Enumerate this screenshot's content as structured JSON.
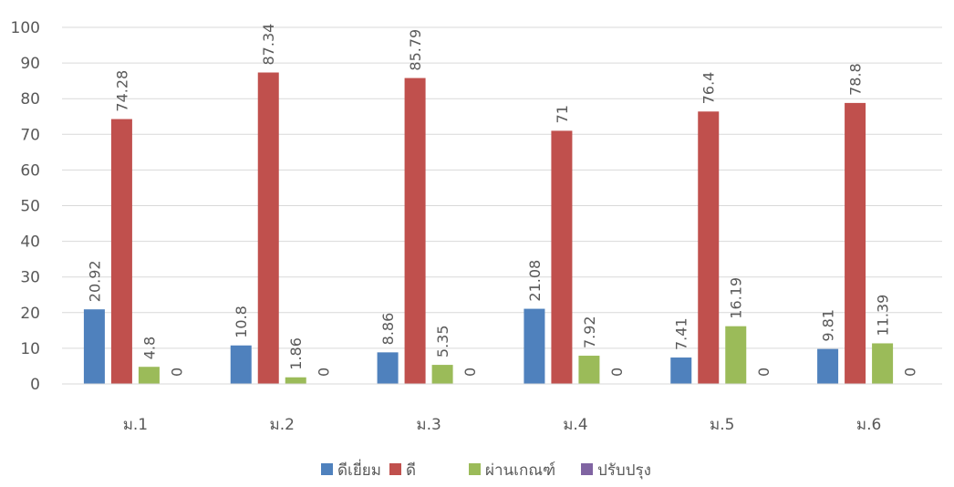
{
  "chart_data": {
    "type": "bar",
    "title": "",
    "xlabel": "",
    "ylabel": "",
    "ylim": [
      0,
      100
    ],
    "yticks": [
      0,
      10,
      20,
      30,
      40,
      50,
      60,
      70,
      80,
      90,
      100
    ],
    "grid": true,
    "legend_position": "bottom",
    "categories": [
      "ม.1",
      "ม.2",
      "ม.3",
      "ม.4",
      "ม.5",
      "ม.6"
    ],
    "series": [
      {
        "name": "ดีเยี่ยม",
        "color": "#4F81BD",
        "values": [
          20.92,
          10.8,
          8.86,
          21.08,
          7.41,
          9.81
        ]
      },
      {
        "name": "ดี",
        "color": "#C0504D",
        "values": [
          74.28,
          87.34,
          85.79,
          71,
          76.4,
          78.8
        ]
      },
      {
        "name": "ผ่านเกณฑ์",
        "color": "#9BBB59",
        "values": [
          4.8,
          1.86,
          5.35,
          7.92,
          16.19,
          11.39
        ]
      },
      {
        "name": "ปรับปรุง",
        "color": "#8064A2",
        "values": [
          0,
          0,
          0,
          0,
          0,
          0
        ]
      }
    ]
  }
}
